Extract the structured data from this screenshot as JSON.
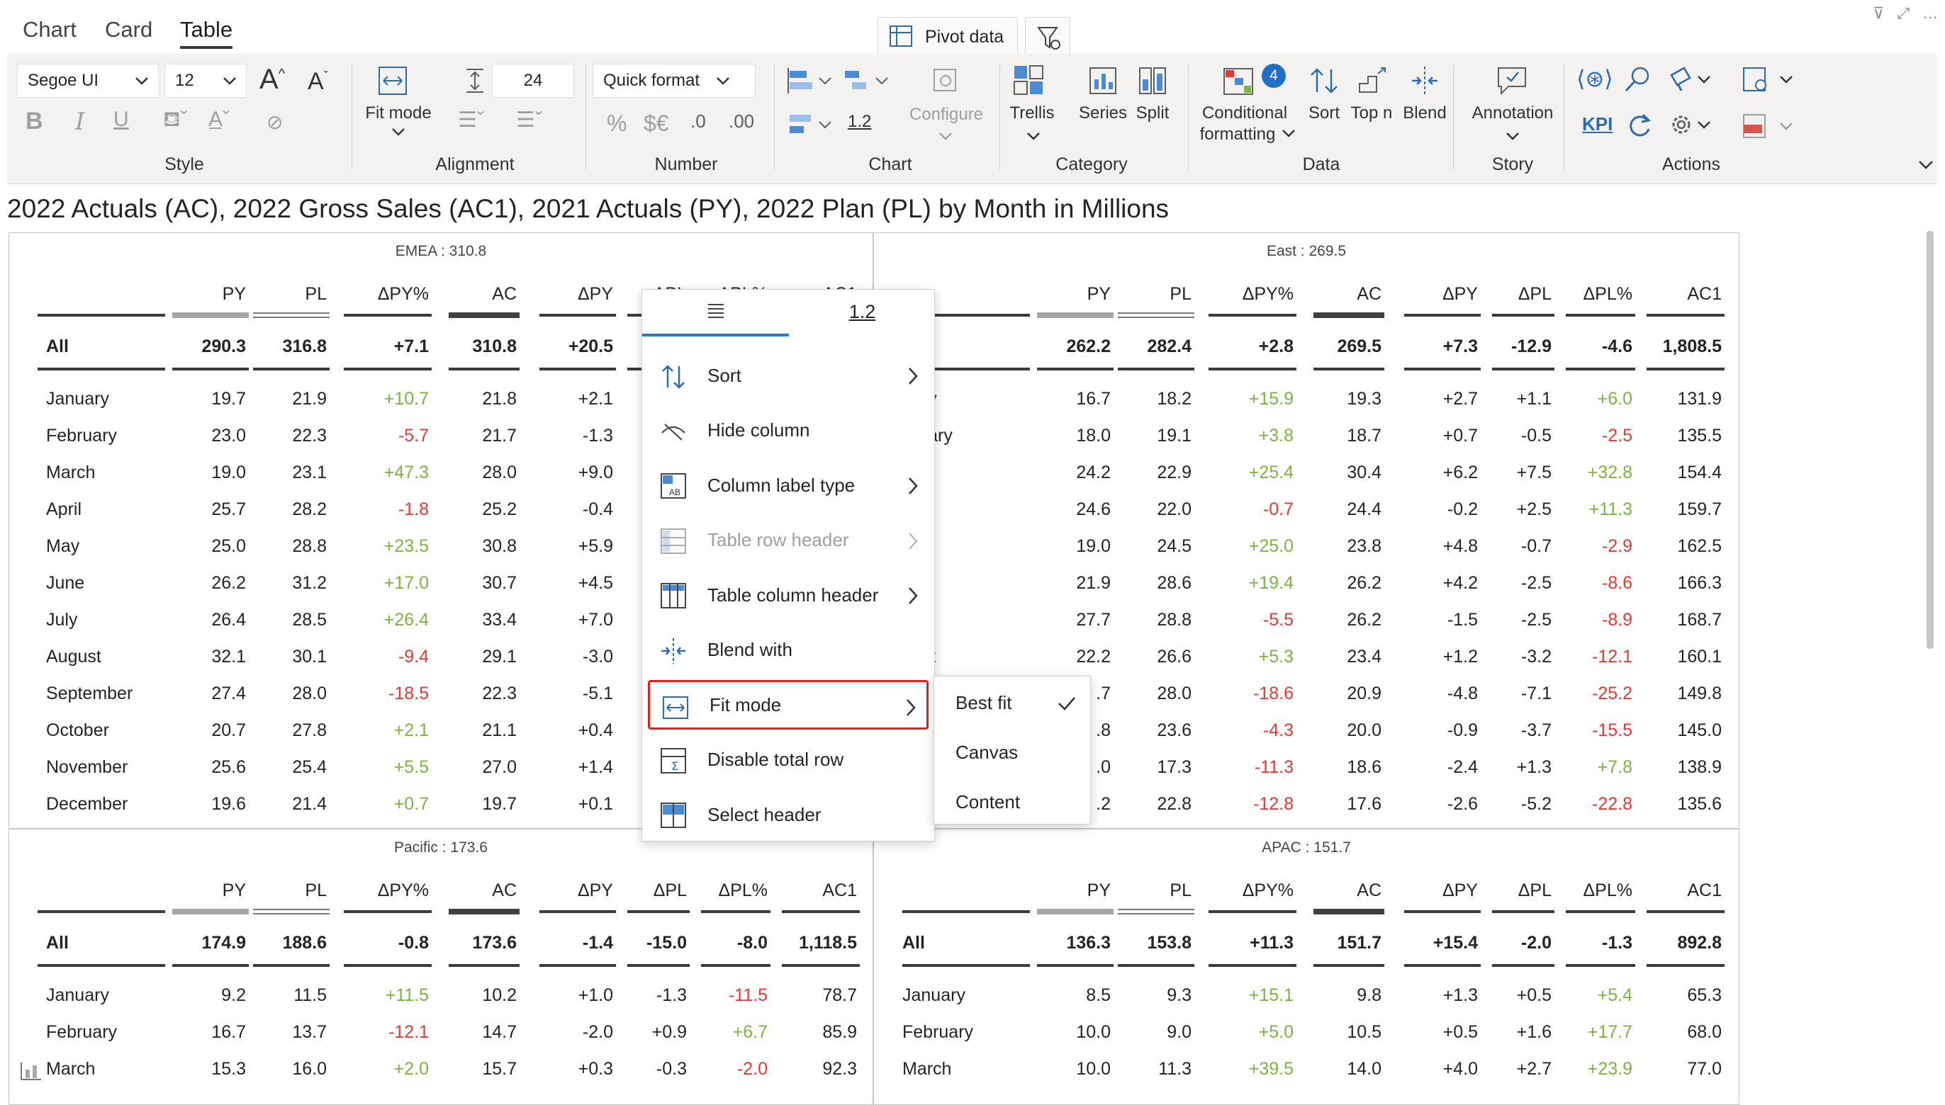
{
  "top_tabs": [
    "Chart",
    "Card",
    "Table"
  ],
  "pivot_label": "Pivot data",
  "ribbon": {
    "font_name": "Segoe UI",
    "font_size": "12",
    "line_height": "24",
    "fit_mode_label": "Fit mode",
    "quick_format": "Quick format",
    "line_width": "1.2",
    "configure_label": "Configure",
    "trellis_label": "Trellis",
    "series_label": "Series",
    "split_label": "Split",
    "cond_format_label1": "Conditional",
    "cond_format_label2": "formatting",
    "cond_badge": "4",
    "sort_label": "Sort",
    "topn_label": "Top n",
    "blend_label": "Blend",
    "annotation_label": "Annotation",
    "kpi_label": "KPI",
    "groups": [
      "Style",
      "Alignment",
      "Number",
      "Chart",
      "Category",
      "Data",
      "Story",
      "Actions"
    ],
    "num_glyphs": [
      "%",
      "$€",
      ".0",
      ".00"
    ]
  },
  "title": "2022 Actuals (AC), 2022 Gross Sales (AC1), 2021 Actuals (PY), 2022 Plan (PL) by Month in Millions",
  "columns": [
    "PY",
    "PL",
    "ΔPY%",
    "AC",
    "ΔPY",
    "ΔPL",
    "ΔPL%",
    "AC1"
  ],
  "panels": [
    {
      "caption": "EMEA : 310.8",
      "all": [
        "All",
        "290.3",
        "316.8",
        "+7.1",
        "310.8",
        "+20.5",
        "",
        "",
        ""
      ],
      "rows": [
        [
          "January",
          "19.7",
          "21.9",
          "+10.7",
          "21.8",
          "+2.1",
          "",
          "",
          ""
        ],
        [
          "February",
          "23.0",
          "22.3",
          "-5.7",
          "21.7",
          "-1.3",
          "",
          "",
          ""
        ],
        [
          "March",
          "19.0",
          "23.1",
          "+47.3",
          "28.0",
          "+9.0",
          "",
          "",
          ""
        ],
        [
          "April",
          "25.7",
          "28.2",
          "-1.8",
          "25.2",
          "-0.4",
          "",
          "",
          ""
        ],
        [
          "May",
          "25.0",
          "28.8",
          "+23.5",
          "30.8",
          "+5.9",
          "",
          "",
          ""
        ],
        [
          "June",
          "26.2",
          "31.2",
          "+17.0",
          "30.7",
          "+4.5",
          "",
          "",
          ""
        ],
        [
          "July",
          "26.4",
          "28.5",
          "+26.4",
          "33.4",
          "+7.0",
          "",
          "",
          ""
        ],
        [
          "August",
          "32.1",
          "30.1",
          "-9.4",
          "29.1",
          "-3.0",
          "",
          "",
          ""
        ],
        [
          "September",
          "27.4",
          "28.0",
          "-18.5",
          "22.3",
          "-5.1",
          "",
          "",
          ""
        ],
        [
          "October",
          "20.7",
          "27.8",
          "+2.1",
          "21.1",
          "+0.4",
          "",
          "",
          ""
        ],
        [
          "November",
          "25.6",
          "25.4",
          "+5.5",
          "27.0",
          "+1.4",
          "",
          "",
          ""
        ],
        [
          "December",
          "19.6",
          "21.4",
          "+0.7",
          "19.7",
          "+0.1",
          "",
          "",
          ""
        ]
      ]
    },
    {
      "caption": "East : 269.5",
      "all": [
        "All",
        "262.2",
        "282.4",
        "+2.8",
        "269.5",
        "+7.3",
        "-12.9",
        "-4.6",
        "1,808.5"
      ],
      "rows": [
        [
          "uary",
          "16.7",
          "18.2",
          "+15.9",
          "19.3",
          "+2.7",
          "+1.1",
          "+6.0",
          "131.9"
        ],
        [
          "bruary",
          "18.0",
          "19.1",
          "+3.8",
          "18.7",
          "+0.7",
          "-0.5",
          "-2.5",
          "135.5"
        ],
        [
          "rch",
          "24.2",
          "22.9",
          "+25.4",
          "30.4",
          "+6.2",
          "+7.5",
          "+32.8",
          "154.4"
        ],
        [
          "ril",
          "24.6",
          "22.0",
          "-0.7",
          "24.4",
          "-0.2",
          "+2.5",
          "+11.3",
          "159.7"
        ],
        [
          "y",
          "19.0",
          "24.5",
          "+25.0",
          "23.8",
          "+4.8",
          "-0.7",
          "-2.9",
          "162.5"
        ],
        [
          "ne",
          "21.9",
          "28.6",
          "+19.4",
          "26.2",
          "+4.2",
          "-2.5",
          "-8.6",
          "166.3"
        ],
        [
          "y",
          "27.7",
          "28.8",
          "-5.5",
          "26.2",
          "-1.5",
          "-2.5",
          "-8.9",
          "168.7"
        ],
        [
          "gust",
          "22.2",
          "26.6",
          "+5.3",
          "23.4",
          "+1.2",
          "-3.2",
          "-12.1",
          "160.1"
        ],
        [
          "",
          ".7",
          "28.0",
          "-18.6",
          "20.9",
          "-4.8",
          "-7.1",
          "-25.2",
          "149.8"
        ],
        [
          "",
          ".8",
          "23.6",
          "-4.3",
          "20.0",
          "-0.9",
          "-3.7",
          "-15.5",
          "145.0"
        ],
        [
          "",
          ".0",
          "17.3",
          "-11.3",
          "18.6",
          "-2.4",
          "+1.3",
          "+7.8",
          "138.9"
        ],
        [
          "",
          ".2",
          "22.8",
          "-12.8",
          "17.6",
          "-2.6",
          "-5.2",
          "-22.8",
          "135.6"
        ]
      ]
    },
    {
      "caption": "Pacific : 173.6",
      "all": [
        "All",
        "174.9",
        "188.6",
        "-0.8",
        "173.6",
        "-1.4",
        "-15.0",
        "-8.0",
        "1,118.5"
      ],
      "rows": [
        [
          "January",
          "9.2",
          "11.5",
          "+11.5",
          "10.2",
          "+1.0",
          "-1.3",
          "-11.5",
          "78.7"
        ],
        [
          "February",
          "16.7",
          "13.7",
          "-12.1",
          "14.7",
          "-2.0",
          "+0.9",
          "+6.7",
          "85.9"
        ],
        [
          "March",
          "15.3",
          "16.0",
          "+2.0",
          "15.7",
          "+0.3",
          "-0.3",
          "-2.0",
          "92.3"
        ]
      ]
    },
    {
      "caption": "APAC : 151.7",
      "all": [
        "All",
        "136.3",
        "153.8",
        "+11.3",
        "151.7",
        "+15.4",
        "-2.0",
        "-1.3",
        "892.8"
      ],
      "rows": [
        [
          "January",
          "8.5",
          "9.3",
          "+15.1",
          "9.8",
          "+1.3",
          "+0.5",
          "+5.4",
          "65.3"
        ],
        [
          "February",
          "10.0",
          "9.0",
          "+5.0",
          "10.5",
          "+0.5",
          "+1.6",
          "+17.7",
          "68.0"
        ],
        [
          "March",
          "10.0",
          "11.3",
          "+39.5",
          "14.0",
          "+4.0",
          "+2.7",
          "+23.9",
          "77.0"
        ]
      ]
    }
  ],
  "context_menu": {
    "tab_format": "1.2",
    "items": [
      {
        "label": "Sort",
        "icon": "sort-icon",
        "submenu": true
      },
      {
        "label": "Hide column",
        "icon": "hide-icon",
        "submenu": false
      },
      {
        "label": "Column label type",
        "icon": "column-label-icon",
        "submenu": true
      },
      {
        "label": "Table row header",
        "icon": "row-header-icon",
        "submenu": true,
        "disabled": true
      },
      {
        "label": "Table column header",
        "icon": "column-header-icon",
        "submenu": true
      },
      {
        "label": "Blend with",
        "icon": "blend-icon",
        "submenu": false
      },
      {
        "label": "Fit mode",
        "icon": "fit-mode-icon",
        "submenu": true,
        "highlight": true
      },
      {
        "label": "Disable total row",
        "icon": "total-row-icon",
        "submenu": false
      },
      {
        "label": "Select header",
        "icon": "select-header-icon",
        "submenu": false
      }
    ]
  },
  "fit_submenu": {
    "items": [
      "Best fit",
      "Canvas",
      "Content"
    ],
    "checked": "Best fit"
  },
  "colors": {
    "positive": "#7cb342",
    "negative": "#e53935",
    "accent": "#2b79d6",
    "highlight": "#e02020"
  }
}
